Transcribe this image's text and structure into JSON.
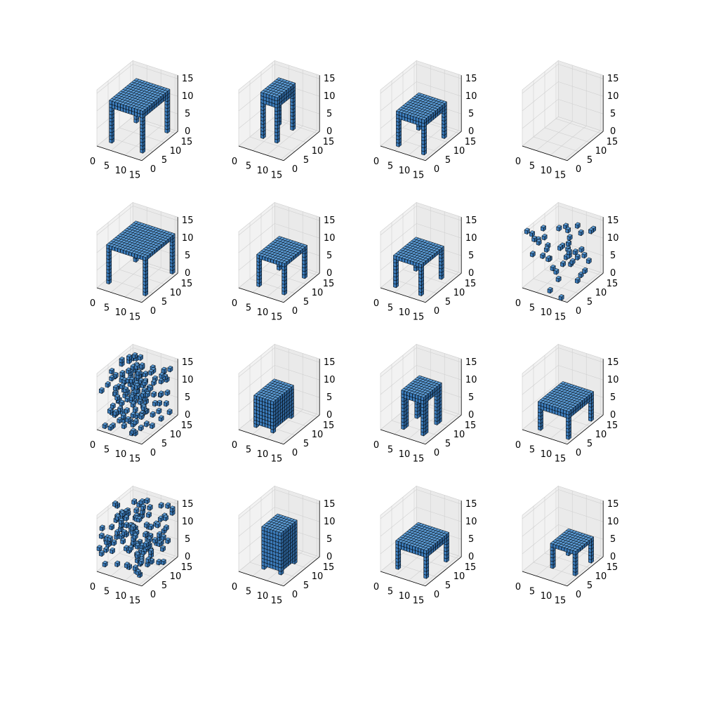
{
  "figure": {
    "rows": 4,
    "cols": 4,
    "voxel_face_color": "#3b7ab8",
    "voxel_top_color": "#5b9bd5",
    "voxel_side_color": "#2c6196",
    "voxel_edge_color": "#000000",
    "pane_color": "#f2f2f2",
    "grid_color": "#d0d0d0"
  },
  "chart_data": [
    {
      "panel": 1,
      "type": "voxels",
      "shape": "table",
      "axis_range": [
        0,
        16
      ],
      "xticks": [
        "0",
        "5",
        "10",
        "15"
      ],
      "yticks": [
        "0",
        "5",
        "10",
        "15"
      ],
      "zticks": [
        "0",
        "5",
        "10",
        "15"
      ]
    },
    {
      "panel": 2,
      "type": "voxels",
      "shape": "table",
      "axis_range": [
        0,
        16
      ],
      "xticks": [
        "0",
        "5",
        "10",
        "15"
      ],
      "yticks": [
        "0",
        "5",
        "10",
        "15"
      ],
      "zticks": [
        "0",
        "5",
        "10",
        "15"
      ]
    },
    {
      "panel": 3,
      "type": "voxels",
      "shape": "table",
      "axis_range": [
        0,
        16
      ],
      "xticks": [
        "0",
        "5",
        "10",
        "15"
      ],
      "yticks": [
        "0",
        "5",
        "10",
        "15"
      ],
      "zticks": [
        "0",
        "5",
        "10",
        "15"
      ]
    },
    {
      "panel": 4,
      "type": "voxels",
      "shape": "empty",
      "axis_range": [
        0,
        16
      ],
      "xticks": [
        "0",
        "5",
        "10",
        "15"
      ],
      "yticks": [
        "0",
        "5",
        "10",
        "15"
      ],
      "zticks": [
        "0",
        "5",
        "10",
        "15"
      ]
    },
    {
      "panel": 5,
      "type": "voxels",
      "shape": "table",
      "axis_range": [
        0,
        16
      ],
      "xticks": [
        "0",
        "5",
        "10",
        "15"
      ],
      "yticks": [
        "0",
        "5",
        "10",
        "15"
      ],
      "zticks": [
        "0",
        "5",
        "10",
        "15"
      ]
    },
    {
      "panel": 6,
      "type": "voxels",
      "shape": "table",
      "axis_range": [
        0,
        16
      ],
      "xticks": [
        "0",
        "5",
        "10",
        "15"
      ],
      "yticks": [
        "0",
        "5",
        "10",
        "15"
      ],
      "zticks": [
        "0",
        "5",
        "10",
        "15"
      ]
    },
    {
      "panel": 7,
      "type": "voxels",
      "shape": "table",
      "axis_range": [
        0,
        16
      ],
      "xticks": [
        "0",
        "5",
        "10",
        "15"
      ],
      "yticks": [
        "0",
        "5",
        "10",
        "15"
      ],
      "zticks": [
        "0",
        "5",
        "10",
        "15"
      ]
    },
    {
      "panel": 8,
      "type": "voxels",
      "shape": "noise",
      "axis_range": [
        0,
        16
      ],
      "xticks": [
        "0",
        "5",
        "10",
        "15"
      ],
      "yticks": [
        "0",
        "5",
        "10",
        "15"
      ],
      "zticks": [
        "0",
        "5",
        "10",
        "15"
      ]
    },
    {
      "panel": 9,
      "type": "voxels",
      "shape": "noise",
      "axis_range": [
        0,
        16
      ],
      "xticks": [
        "0",
        "5",
        "10",
        "15"
      ],
      "yticks": [
        "0",
        "5",
        "10",
        "15"
      ],
      "zticks": [
        "0",
        "5",
        "10",
        "15"
      ]
    },
    {
      "panel": 10,
      "type": "voxels",
      "shape": "table",
      "axis_range": [
        0,
        16
      ],
      "xticks": [
        "0",
        "5",
        "10",
        "15"
      ],
      "yticks": [
        "0",
        "5",
        "10",
        "15"
      ],
      "zticks": [
        "0",
        "5",
        "10",
        "15"
      ]
    },
    {
      "panel": 11,
      "type": "voxels",
      "shape": "table",
      "axis_range": [
        0,
        16
      ],
      "xticks": [
        "0",
        "5",
        "10",
        "15"
      ],
      "yticks": [
        "0",
        "5",
        "10",
        "15"
      ],
      "zticks": [
        "0",
        "5",
        "10",
        "15"
      ]
    },
    {
      "panel": 12,
      "type": "voxels",
      "shape": "table",
      "axis_range": [
        0,
        16
      ],
      "xticks": [
        "0",
        "5",
        "10",
        "15"
      ],
      "yticks": [
        "0",
        "5",
        "10",
        "15"
      ],
      "zticks": [
        "0",
        "5",
        "10",
        "15"
      ]
    },
    {
      "panel": 13,
      "type": "voxels",
      "shape": "noise",
      "axis_range": [
        0,
        16
      ],
      "xticks": [
        "0",
        "5",
        "10",
        "15"
      ],
      "yticks": [
        "0",
        "5",
        "10",
        "15"
      ],
      "zticks": [
        "0",
        "5",
        "10",
        "15"
      ]
    },
    {
      "panel": 14,
      "type": "voxels",
      "shape": "table",
      "axis_range": [
        0,
        16
      ],
      "xticks": [
        "0",
        "5",
        "10",
        "15"
      ],
      "yticks": [
        "0",
        "5",
        "10",
        "15"
      ],
      "zticks": [
        "0",
        "5",
        "10",
        "15"
      ]
    },
    {
      "panel": 15,
      "type": "voxels",
      "shape": "table",
      "axis_range": [
        0,
        16
      ],
      "xticks": [
        "0",
        "5",
        "10",
        "15"
      ],
      "yticks": [
        "0",
        "5",
        "10",
        "15"
      ],
      "zticks": [
        "0",
        "5",
        "10",
        "15"
      ]
    },
    {
      "panel": 16,
      "type": "voxels",
      "shape": "table",
      "axis_range": [
        0,
        16
      ],
      "xticks": [
        "0",
        "5",
        "10",
        "15"
      ],
      "yticks": [
        "0",
        "5",
        "10",
        "15"
      ],
      "zticks": [
        "0",
        "5",
        "10",
        "15"
      ]
    }
  ]
}
